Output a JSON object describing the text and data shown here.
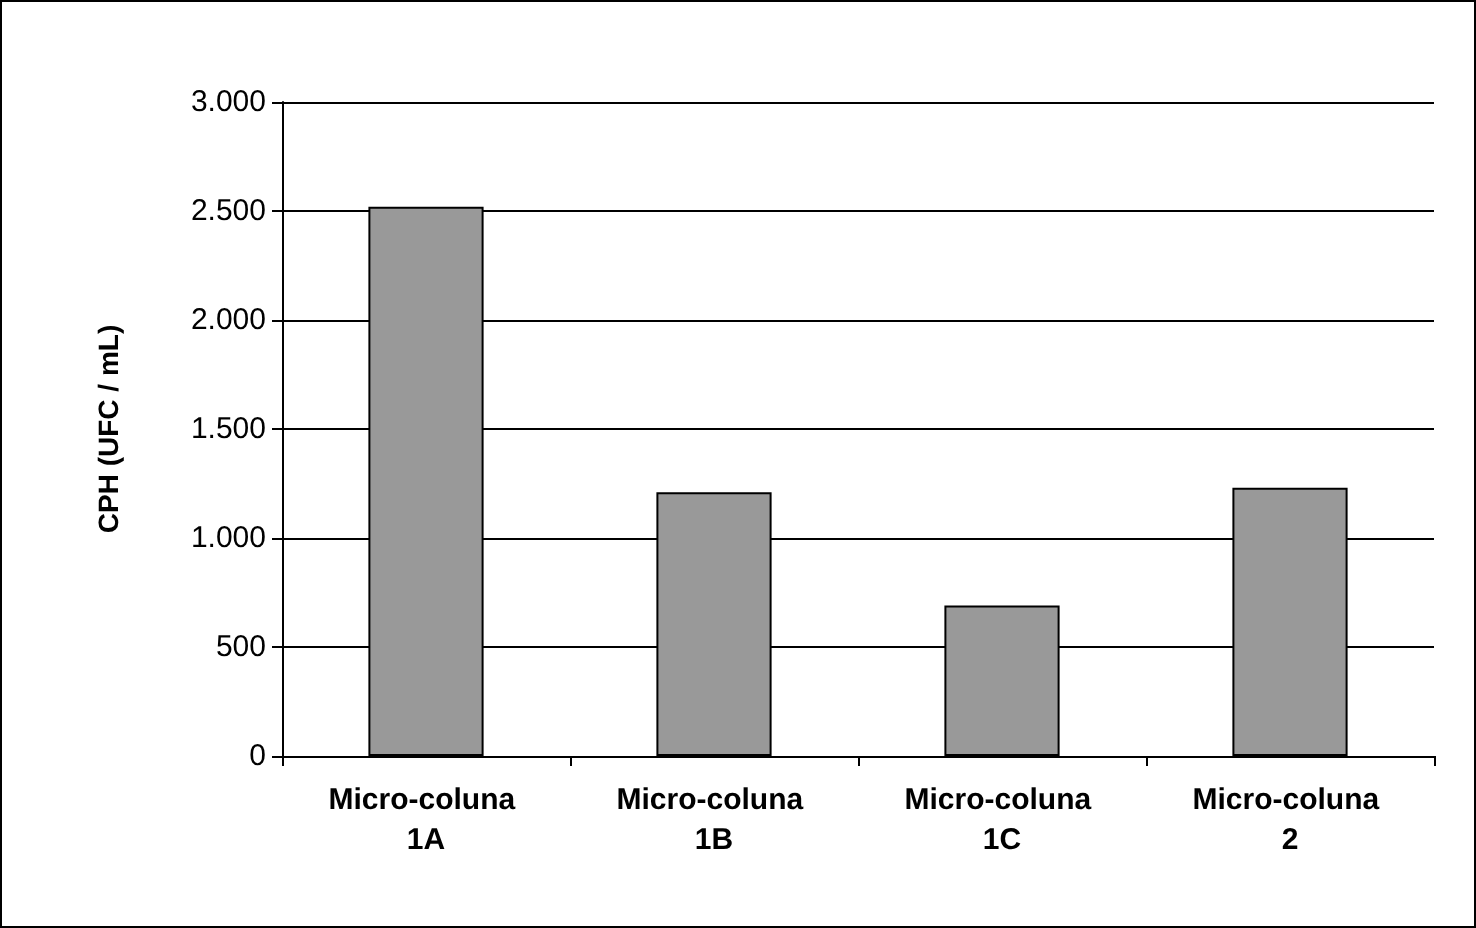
{
  "chart_data": {
    "type": "bar",
    "ylabel": "CPH (UFC / mL)",
    "categories": [
      "Micro-coluna 1A",
      "Micro-coluna 1B",
      "Micro-coluna 1C",
      "Micro-coluna 2"
    ],
    "values": [
      2520,
      1210,
      690,
      1230
    ],
    "color": "#999999",
    "ylim": [
      0,
      3000
    ],
    "yticks": [
      {
        "value": 0,
        "label": "0"
      },
      {
        "value": 500,
        "label": "500"
      },
      {
        "value": 1000,
        "label": "1.000"
      },
      {
        "value": 1500,
        "label": "1.500"
      },
      {
        "value": 2000,
        "label": "2.000"
      },
      {
        "value": 2500,
        "label": "2.500"
      },
      {
        "value": 3000,
        "label": "3.000"
      }
    ],
    "grid": "y"
  }
}
